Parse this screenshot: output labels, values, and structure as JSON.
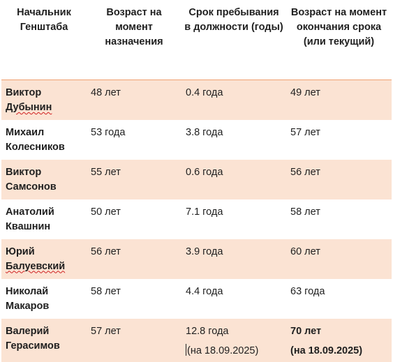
{
  "table": {
    "headers": [
      "Начальник Генштаба",
      "Возраст на момент назначения",
      "Срок пребывания в должности (годы)",
      "Возраст на момент окончания срока (или текущий)"
    ],
    "rows": [
      {
        "name_first": "Виктор",
        "name_last": "Дубынин",
        "age_appointed": "48 лет",
        "term": "0.4 года",
        "age_end": "49 лет",
        "shaded": true
      },
      {
        "name_first": "Михаил",
        "name_last": "Колесников",
        "age_appointed": "53 года",
        "term": "3.8 года",
        "age_end": "57 лет",
        "shaded": false
      },
      {
        "name_first": "Виктор",
        "name_last": "Самсонов",
        "age_appointed": "55 лет",
        "term": "0.6 года",
        "age_end": "56 лет",
        "shaded": true
      },
      {
        "name_first": "Анатолий",
        "name_last": "Квашнин",
        "age_appointed": "50 лет",
        "term": "7.1 года",
        "age_end": "58 лет",
        "shaded": false
      },
      {
        "name_first": "Юрий",
        "name_last": "Балуевский",
        "age_appointed": "56 лет",
        "term": "3.9 года",
        "age_end": "60 лет",
        "shaded": true
      },
      {
        "name_first": "Николай",
        "name_last": "Макаров",
        "age_appointed": "58 лет",
        "term": "4.4 года",
        "age_end": "63 года",
        "shaded": false
      },
      {
        "name_first": "Валерий",
        "name_last": "Герасимов",
        "age_appointed": "57 лет",
        "term": "12.8 года",
        "term_note": "(на 18.09.2025)",
        "age_end": "70 лет",
        "age_end_note": "(на 18.09.2025)",
        "shaded": true
      }
    ]
  },
  "colors": {
    "row_shade": "#fbe3d3",
    "header_rule": "#f0a070",
    "spellcheck": "#d02020"
  }
}
